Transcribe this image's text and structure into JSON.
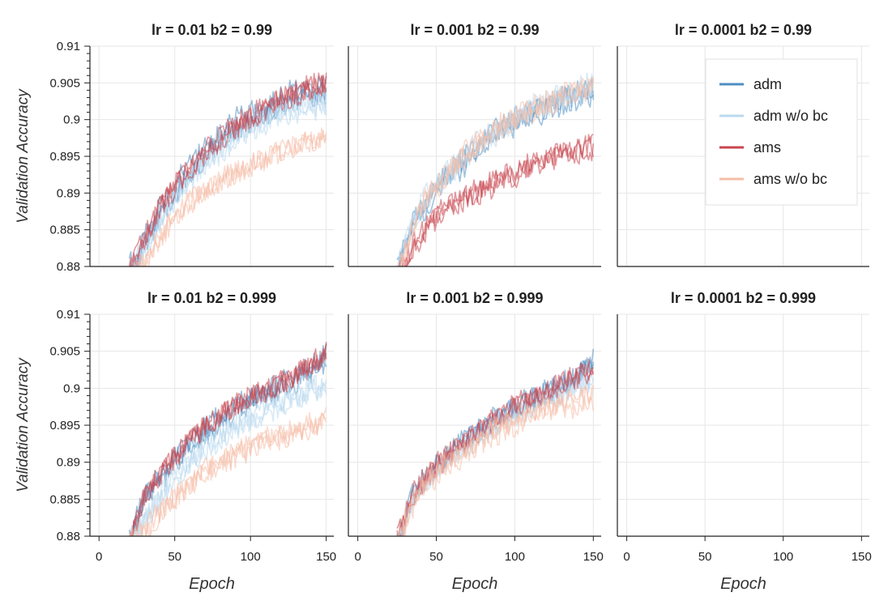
{
  "figure": {
    "ylabel": "Validation Accuracy",
    "xlabel": "Epoch",
    "legend": [
      {
        "label": "adm",
        "color": "#4f8fc2"
      },
      {
        "label": "adm w/o bc",
        "color": "#b9d9ee"
      },
      {
        "label": "ams",
        "color": "#c9454f"
      },
      {
        "label": "ams w/o bc",
        "color": "#f6bda7"
      }
    ]
  },
  "chart_data": [
    {
      "type": "line",
      "title": "lr = 0.01    b2 = 0.99",
      "xlim": [
        -6,
        155
      ],
      "ylim": [
        0.88,
        0.91
      ],
      "xticks": [
        "0",
        "50",
        "100",
        "150"
      ],
      "yticks": [
        "0.88",
        "0.885",
        "0.89",
        "0.895",
        "0.9",
        "0.905",
        "0.91"
      ],
      "series": [
        {
          "name": "adm",
          "x": [
            20,
            30,
            40,
            50,
            60,
            70,
            80,
            90,
            100,
            110,
            120,
            130,
            140,
            150
          ],
          "y": [
            0.8795,
            0.8835,
            0.8875,
            0.8905,
            0.8935,
            0.8955,
            0.8975,
            0.8995,
            0.9005,
            0.9015,
            0.9025,
            0.9035,
            0.904,
            0.9045
          ]
        },
        {
          "name": "adm w/o bc",
          "x": [
            20,
            30,
            40,
            50,
            60,
            70,
            80,
            90,
            100,
            110,
            120,
            130,
            140,
            150
          ],
          "y": [
            0.879,
            0.8825,
            0.886,
            0.8895,
            0.892,
            0.894,
            0.896,
            0.8975,
            0.899,
            0.9,
            0.901,
            0.9015,
            0.902,
            0.902
          ]
        },
        {
          "name": "ams",
          "x": [
            20,
            30,
            40,
            50,
            60,
            70,
            80,
            90,
            100,
            110,
            120,
            130,
            140,
            150
          ],
          "y": [
            0.8795,
            0.8845,
            0.8885,
            0.8915,
            0.894,
            0.896,
            0.898,
            0.8995,
            0.901,
            0.902,
            0.9035,
            0.904,
            0.905,
            0.9055
          ]
        },
        {
          "name": "ams w/o bc",
          "x": [
            20,
            30,
            40,
            50,
            60,
            70,
            80,
            90,
            100,
            110,
            120,
            130,
            140,
            150
          ],
          "y": [
            0.879,
            0.881,
            0.884,
            0.887,
            0.889,
            0.8905,
            0.892,
            0.893,
            0.894,
            0.895,
            0.896,
            0.8965,
            0.8975,
            0.898
          ]
        }
      ]
    },
    {
      "type": "line",
      "title": "lr = 0.001    b2 = 0.99",
      "xlim": [
        -6,
        155
      ],
      "ylim": [
        0.88,
        0.91
      ],
      "xticks": [
        "0",
        "50",
        "100",
        "150"
      ],
      "yticks": [],
      "series": [
        {
          "name": "adm",
          "x": [
            25,
            35,
            45,
            55,
            65,
            75,
            85,
            95,
            105,
            115,
            125,
            135,
            145,
            150
          ],
          "y": [
            0.879,
            0.8855,
            0.889,
            0.8915,
            0.8935,
            0.8955,
            0.8975,
            0.899,
            0.9,
            0.901,
            0.902,
            0.9025,
            0.9035,
            0.9035
          ]
        },
        {
          "name": "adm w/o bc",
          "x": [
            25,
            35,
            45,
            55,
            65,
            75,
            85,
            95,
            105,
            115,
            125,
            135,
            145,
            150
          ],
          "y": [
            0.879,
            0.886,
            0.8895,
            0.892,
            0.894,
            0.896,
            0.8975,
            0.899,
            0.9005,
            0.9015,
            0.9025,
            0.903,
            0.904,
            0.904
          ]
        },
        {
          "name": "ams",
          "x": [
            25,
            35,
            45,
            55,
            65,
            75,
            85,
            95,
            105,
            115,
            125,
            135,
            145,
            150
          ],
          "y": [
            0.8785,
            0.883,
            0.886,
            0.888,
            0.8895,
            0.8905,
            0.8915,
            0.8925,
            0.8935,
            0.8945,
            0.8955,
            0.896,
            0.8965,
            0.8965
          ]
        },
        {
          "name": "ams w/o bc",
          "x": [
            25,
            35,
            45,
            55,
            65,
            75,
            85,
            95,
            105,
            115,
            125,
            135,
            145,
            150
          ],
          "y": [
            0.8785,
            0.8855,
            0.8895,
            0.892,
            0.8945,
            0.8965,
            0.898,
            0.8995,
            0.9005,
            0.9015,
            0.9025,
            0.9035,
            0.904,
            0.905
          ]
        }
      ]
    },
    {
      "type": "line",
      "title": "lr = 0.0001    b2 = 0.99",
      "xlim": [
        -6,
        155
      ],
      "ylim": [
        0.88,
        0.91
      ],
      "xticks": [
        "0",
        "50",
        "100",
        "150"
      ],
      "yticks": [],
      "series": []
    },
    {
      "type": "line",
      "title": "lr = 0.01    b2 = 0.999",
      "xlim": [
        -6,
        155
      ],
      "ylim": [
        0.88,
        0.91
      ],
      "xticks": [
        "0",
        "50",
        "100",
        "150"
      ],
      "yticks": [
        "0.88",
        "0.885",
        "0.89",
        "0.895",
        "0.9",
        "0.905",
        "0.91"
      ],
      "series": [
        {
          "name": "adm",
          "x": [
            20,
            30,
            40,
            50,
            60,
            70,
            80,
            90,
            100,
            110,
            120,
            130,
            140,
            150
          ],
          "y": [
            0.8795,
            0.8845,
            0.8875,
            0.89,
            0.892,
            0.894,
            0.8955,
            0.897,
            0.898,
            0.899,
            0.9,
            0.901,
            0.9025,
            0.904
          ]
        },
        {
          "name": "adm w/o bc",
          "x": [
            20,
            30,
            40,
            50,
            60,
            70,
            80,
            90,
            100,
            110,
            120,
            130,
            140,
            150
          ],
          "y": [
            0.879,
            0.8825,
            0.8855,
            0.888,
            0.89,
            0.892,
            0.8935,
            0.895,
            0.896,
            0.897,
            0.898,
            0.899,
            0.9,
            0.9005
          ]
        },
        {
          "name": "ams",
          "x": [
            20,
            30,
            40,
            50,
            60,
            70,
            80,
            90,
            100,
            110,
            120,
            130,
            140,
            150
          ],
          "y": [
            0.8795,
            0.886,
            0.889,
            0.8915,
            0.8935,
            0.8955,
            0.897,
            0.8985,
            0.8995,
            0.9005,
            0.9015,
            0.9025,
            0.904,
            0.9055
          ]
        },
        {
          "name": "ams w/o bc",
          "x": [
            20,
            30,
            40,
            50,
            60,
            70,
            80,
            90,
            100,
            110,
            120,
            130,
            140,
            150
          ],
          "y": [
            0.879,
            0.8805,
            0.883,
            0.885,
            0.887,
            0.8885,
            0.89,
            0.891,
            0.892,
            0.893,
            0.8935,
            0.894,
            0.895,
            0.8955
          ]
        }
      ]
    },
    {
      "type": "line",
      "title": "lr = 0.001    b2 = 0.999",
      "xlim": [
        -6,
        155
      ],
      "ylim": [
        0.88,
        0.91
      ],
      "xticks": [
        "0",
        "50",
        "100",
        "150"
      ],
      "yticks": [],
      "series": [
        {
          "name": "adm",
          "x": [
            25,
            35,
            45,
            55,
            65,
            75,
            85,
            95,
            105,
            115,
            125,
            135,
            145,
            150
          ],
          "y": [
            0.879,
            0.8855,
            0.8885,
            0.8905,
            0.8925,
            0.894,
            0.8955,
            0.897,
            0.898,
            0.899,
            0.9,
            0.901,
            0.9025,
            0.904
          ]
        },
        {
          "name": "adm w/o bc",
          "x": [
            25,
            35,
            45,
            55,
            65,
            75,
            85,
            95,
            105,
            115,
            125,
            135,
            145,
            150
          ],
          "y": [
            0.879,
            0.8855,
            0.8885,
            0.8905,
            0.892,
            0.8935,
            0.895,
            0.8965,
            0.8975,
            0.8985,
            0.8995,
            0.9005,
            0.9015,
            0.902
          ]
        },
        {
          "name": "ams",
          "x": [
            25,
            35,
            45,
            55,
            65,
            75,
            85,
            95,
            105,
            115,
            125,
            135,
            145,
            150
          ],
          "y": [
            0.879,
            0.885,
            0.888,
            0.89,
            0.892,
            0.8935,
            0.895,
            0.8965,
            0.8975,
            0.8985,
            0.8995,
            0.9005,
            0.9015,
            0.902
          ]
        },
        {
          "name": "ams w/o bc",
          "x": [
            25,
            35,
            45,
            55,
            65,
            75,
            85,
            95,
            105,
            115,
            125,
            135,
            145,
            150
          ],
          "y": [
            0.879,
            0.8845,
            0.8875,
            0.8895,
            0.891,
            0.8925,
            0.894,
            0.895,
            0.896,
            0.897,
            0.8975,
            0.898,
            0.8985,
            0.8985
          ]
        }
      ]
    },
    {
      "type": "line",
      "title": "lr = 0.0001    b2 = 0.999",
      "xlim": [
        -6,
        155
      ],
      "ylim": [
        0.88,
        0.91
      ],
      "xticks": [
        "0",
        "50",
        "100",
        "150"
      ],
      "yticks": [],
      "series": []
    }
  ]
}
